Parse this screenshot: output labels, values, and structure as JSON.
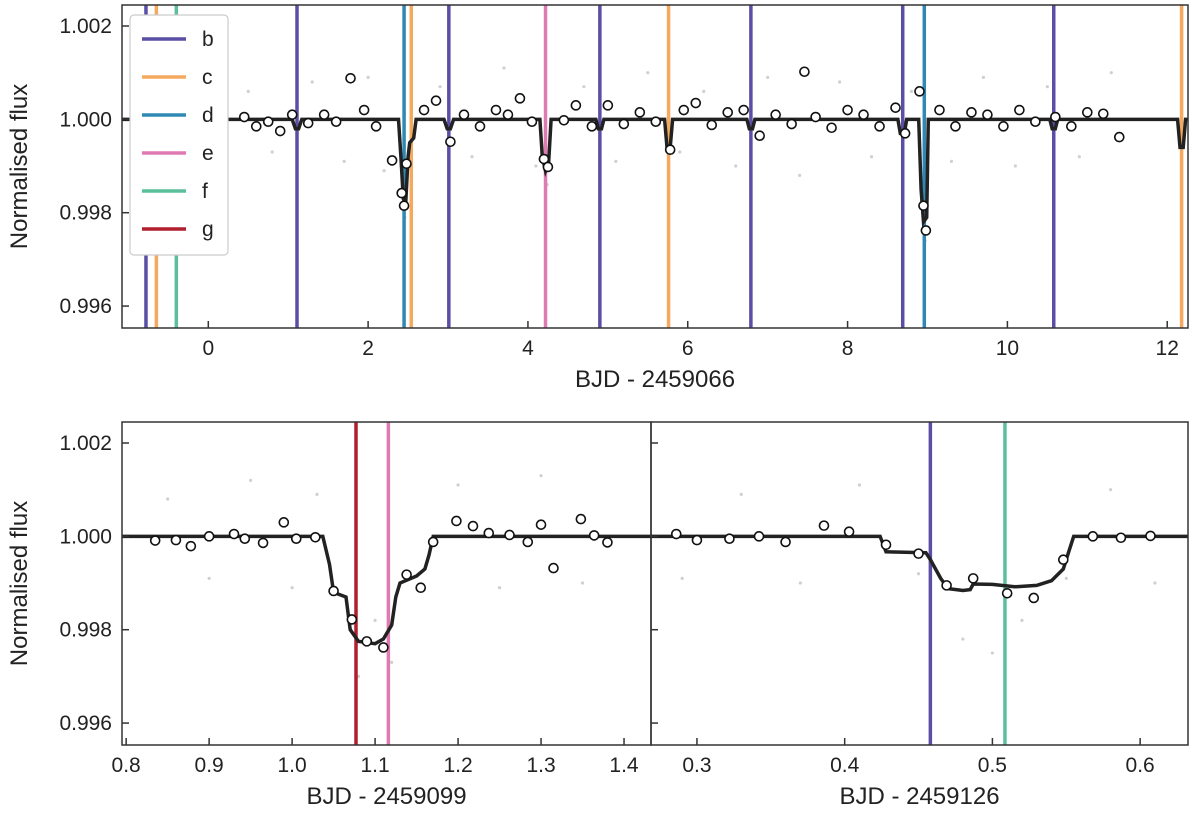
{
  "chart_data": [
    {
      "type": "line",
      "xlabel": "BJD - 2459066",
      "ylabel": "Normalised flux",
      "xlim": [
        -1.08,
        12.26
      ],
      "xticks": [
        0,
        2,
        4,
        6,
        8,
        10,
        12
      ],
      "ylim": [
        0.99553,
        1.00245
      ],
      "yticks": [
        {
          "value": 0.996,
          "label": "0.996"
        },
        {
          "value": 0.998,
          "label": "0.998"
        },
        {
          "value": 1,
          "label": "1.000"
        },
        {
          "value": 1.002,
          "label": "1.002"
        }
      ],
      "legend": "upper left",
      "transits": [
        {
          "name": "b",
          "color": "#5a4ea6",
          "x": [
            -0.78,
            1.11,
            3.01,
            4.9,
            6.79,
            8.69,
            10.58
          ]
        },
        {
          "name": "c",
          "color": "#f5a95e",
          "x": [
            -0.65,
            2.54,
            5.76,
            12.18
          ]
        },
        {
          "name": "d",
          "color": "#3089b4",
          "x": [
            2.45,
            8.96
          ]
        },
        {
          "name": "e",
          "color": "#e07ab3",
          "x": [
            4.22
          ]
        },
        {
          "name": "f",
          "color": "#5bbf9b",
          "x": [
            -0.4
          ]
        },
        {
          "name": "g",
          "color": "#b01f2e",
          "x": []
        }
      ],
      "model": {
        "x": [
          -1.08,
          1.05,
          1.09,
          1.13,
          1.17,
          2.38,
          2.41,
          2.44,
          2.47,
          2.5,
          2.52,
          2.57,
          2.6,
          2.95,
          2.99,
          3.03,
          3.07,
          4.15,
          4.18,
          4.22,
          4.26,
          4.29,
          4.85,
          4.88,
          4.92,
          4.95,
          5.71,
          5.74,
          5.78,
          5.81,
          6.74,
          6.77,
          6.81,
          6.84,
          8.63,
          8.66,
          8.71,
          8.74,
          8.89,
          8.92,
          8.95,
          8.99,
          9.01,
          10.53,
          10.56,
          10.6,
          10.63,
          12.13,
          12.16,
          12.2,
          12.23,
          12.26
        ],
        "y": [
          1,
          1,
          0.9998,
          0.9998,
          1,
          1,
          0.9992,
          0.9983,
          0.9982,
          0.9992,
          0.9995,
          0.9996,
          1,
          1,
          0.9998,
          0.9998,
          1,
          1,
          0.9992,
          0.9989,
          0.9991,
          1,
          1,
          0.9998,
          0.9998,
          1,
          1,
          0.9994,
          0.9994,
          1,
          1,
          0.9998,
          0.9998,
          1,
          1,
          0.9997,
          0.9997,
          1,
          1,
          0.9985,
          0.9978,
          0.9979,
          1,
          1,
          0.9998,
          0.9998,
          1,
          1,
          0.9994,
          0.9994,
          1,
          1
        ]
      },
      "binned": {
        "x": [
          0.45,
          0.6,
          0.75,
          0.9,
          1.05,
          1.25,
          1.45,
          1.6,
          1.78,
          1.95,
          2.1,
          2.3,
          2.42,
          2.45,
          2.48,
          2.7,
          2.85,
          3.03,
          3.2,
          3.4,
          3.6,
          3.75,
          3.9,
          4.05,
          4.2,
          4.25,
          4.45,
          4.6,
          4.8,
          5.0,
          5.2,
          5.4,
          5.6,
          5.78,
          5.95,
          6.1,
          6.3,
          6.5,
          6.7,
          6.9,
          7.1,
          7.3,
          7.46,
          7.6,
          7.8,
          8.0,
          8.2,
          8.4,
          8.6,
          8.72,
          8.9,
          8.95,
          8.98,
          9.15,
          9.35,
          9.55,
          9.75,
          9.95,
          10.15,
          10.35,
          10.6,
          10.8,
          11.0,
          11.2,
          11.4
        ],
        "y": [
          1.00005,
          0.99985,
          0.99995,
          0.99975,
          1.0001,
          0.99992,
          1.0001,
          0.99995,
          1.00088,
          1.0002,
          0.99985,
          0.99912,
          0.99842,
          0.99815,
          0.99905,
          1.0002,
          1.0004,
          0.99952,
          1.0001,
          0.99985,
          1.0002,
          1.0001,
          1.00045,
          0.99995,
          0.99915,
          0.99898,
          0.99998,
          1.0003,
          0.99985,
          1.0003,
          0.9999,
          1.00015,
          0.99995,
          0.99935,
          1.0002,
          1.00035,
          0.99988,
          1.00015,
          1.0002,
          0.99965,
          1.0001,
          0.9999,
          1.00102,
          1.00005,
          0.99982,
          1.0002,
          1.0001,
          0.99985,
          1.00025,
          0.9997,
          1.0006,
          0.99815,
          0.99762,
          1.0002,
          0.99985,
          1.00015,
          1.0001,
          0.99985,
          1.0002,
          0.99995,
          1.00005,
          0.99985,
          1.00015,
          1.00012,
          0.99962
        ]
      },
      "raw": {
        "x": [
          0.5,
          0.8,
          1.3,
          1.7,
          2.0,
          2.2,
          2.46,
          2.9,
          3.3,
          3.7,
          4.1,
          4.24,
          4.7,
          5.1,
          5.5,
          5.9,
          6.2,
          6.6,
          7.0,
          7.4,
          7.9,
          8.3,
          8.8,
          8.97,
          9.3,
          9.7,
          10.1,
          10.5,
          10.9,
          11.3
        ],
        "y": [
          1.0006,
          0.9993,
          1.0008,
          0.9991,
          1.0009,
          0.9989,
          0.9979,
          1.0007,
          0.9992,
          1.0011,
          0.999,
          0.9986,
          1.0007,
          0.9991,
          1.001,
          0.9993,
          1.0006,
          0.999,
          1.0009,
          0.9988,
          1.0008,
          0.9992,
          1.0006,
          0.9974,
          0.9991,
          1.0009,
          0.999,
          1.0007,
          0.9992,
          1.001
        ]
      }
    },
    {
      "type": "line",
      "xlabel": "BJD - 2459099",
      "ylabel": "Normalised flux",
      "xlim": [
        0.795,
        1.4325
      ],
      "xticks": [
        0.8,
        0.9,
        {
          "value": 1,
          "label": "1.0"
        },
        1.1,
        1.2,
        1.3,
        1.4
      ],
      "ylim": [
        0.99553,
        1.00245
      ],
      "yticks": [
        {
          "value": 0.996,
          "label": "0.996"
        },
        {
          "value": 0.998,
          "label": "0.998"
        },
        {
          "value": 1,
          "label": "1.000"
        },
        {
          "value": 1.002,
          "label": "1.002"
        }
      ],
      "transits": [
        {
          "color": "#b01f2e",
          "x": [
            1.077
          ]
        },
        {
          "color": "#e07ab3",
          "x": [
            1.116
          ]
        }
      ],
      "model": {
        "x": [
          0.795,
          1.037,
          1.045,
          1.05,
          1.065,
          1.07,
          1.08,
          1.1,
          1.11,
          1.12,
          1.125,
          1.13,
          1.15,
          1.16,
          1.165,
          1.17,
          1.4325
        ],
        "y": [
          1,
          1,
          0.9994,
          0.9988,
          0.9987,
          0.998,
          0.99775,
          0.9977,
          0.9978,
          0.9981,
          0.9987,
          0.999,
          0.99915,
          0.9993,
          0.9996,
          1,
          1
        ]
      },
      "binned": {
        "x": [
          0.835,
          0.86,
          0.878,
          0.9,
          0.93,
          0.943,
          0.965,
          0.99,
          1.005,
          1.028,
          1.05,
          1.072,
          1.09,
          1.11,
          1.138,
          1.155,
          1.17,
          1.198,
          1.218,
          1.237,
          1.262,
          1.284,
          1.3,
          1.315,
          1.348,
          1.364,
          1.38
        ],
        "y": [
          0.99991,
          0.99992,
          0.99979,
          1,
          1.00005,
          0.99995,
          0.99986,
          1.0003,
          0.99995,
          0.99998,
          0.99883,
          0.99822,
          0.99775,
          0.99762,
          0.99918,
          0.9989,
          0.99988,
          1.00033,
          1.00022,
          1.00007,
          1.00003,
          0.99988,
          1.00025,
          0.99932,
          1.00037,
          1.00002,
          0.99987
        ]
      },
      "raw": {
        "x": [
          0.85,
          0.9,
          0.95,
          1.0,
          1.03,
          1.08,
          1.1,
          1.12,
          1.2,
          1.25,
          1.3,
          1.35
        ],
        "y": [
          1.0008,
          0.9991,
          1.0012,
          0.9989,
          1.0009,
          0.997,
          0.9982,
          0.9973,
          1.0011,
          0.9989,
          1.0013,
          0.999
        ]
      }
    },
    {
      "type": "line",
      "xlabel": "BJD - 2459126",
      "xlim": [
        0.2689,
        0.6324
      ],
      "xticks": [
        0.3,
        0.4,
        0.5,
        0.6
      ],
      "ylim": [
        0.99553,
        1.00245
      ],
      "yticks": [
        0.996,
        0.998,
        1,
        1.002
      ],
      "transits": [
        {
          "color": "#5a4ea6",
          "x": [
            0.458
          ]
        },
        {
          "color": "#5bbf9b",
          "x": [
            0.5085
          ]
        }
      ],
      "model": {
        "x": [
          0.2689,
          0.424,
          0.428,
          0.455,
          0.458,
          0.465,
          0.47,
          0.48,
          0.485,
          0.487,
          0.5,
          0.515,
          0.53,
          0.54,
          0.548,
          0.551,
          0.555,
          0.6324
        ],
        "y": [
          1,
          1,
          0.99967,
          0.99965,
          0.9995,
          0.9991,
          0.99888,
          0.99884,
          0.99886,
          0.99898,
          0.99897,
          0.99892,
          0.99895,
          0.99905,
          0.9993,
          0.9996,
          1,
          1
        ]
      },
      "binned": {
        "x": [
          0.286,
          0.3,
          0.322,
          0.342,
          0.36,
          0.386,
          0.403,
          0.428,
          0.45,
          0.469,
          0.487,
          0.51,
          0.528,
          0.548,
          0.568,
          0.587,
          0.607
        ],
        "y": [
          1.00005,
          0.99992,
          0.99995,
          1,
          0.99988,
          1.00023,
          1.0001,
          0.99982,
          0.99963,
          0.99895,
          0.9991,
          0.99878,
          0.99868,
          0.9995,
          1,
          0.99997,
          1.00001
        ]
      },
      "raw": {
        "x": [
          0.29,
          0.33,
          0.37,
          0.41,
          0.45,
          0.48,
          0.5,
          0.52,
          0.55,
          0.58,
          0.61
        ],
        "y": [
          0.9991,
          1.0009,
          0.999,
          1.0011,
          0.9992,
          0.9978,
          0.9975,
          0.9982,
          0.9991,
          1.001,
          0.999
        ]
      }
    }
  ]
}
